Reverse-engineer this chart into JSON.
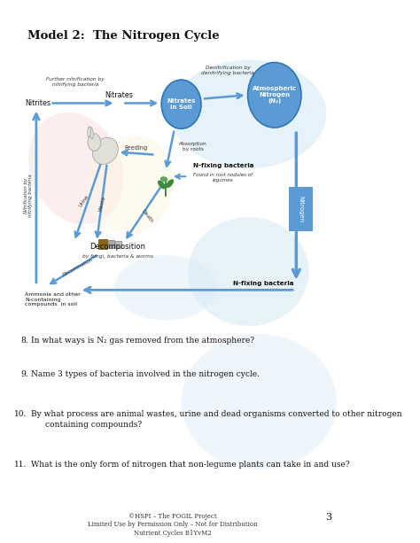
{
  "title": "Model 2:  The Nitrogen Cycle",
  "bg_color": "#ffffff",
  "arrow_color": "#5b9bd5",
  "node_fill": "#5b9bd5",
  "node_edge": "#2e75b6",
  "q8": "In what ways is N₂ gas removed from the atmosphere?",
  "q9": "Name 3 types of bacteria involved in the nitrogen cycle.",
  "q10_line1": "By what process are animal wastes, urine and dead organisms converted to other nitrogen",
  "q10_line2": "containing compounds?",
  "q11": "What is the only form of nitrogen that non-legume plants can take in and use?",
  "footer1": "©HSPI – The POGIL Project",
  "footer2": "Limited Use by Permission Only – Not for Distribution",
  "footer3": "Nutrient Cycles B1YvM2",
  "page_num": "3"
}
